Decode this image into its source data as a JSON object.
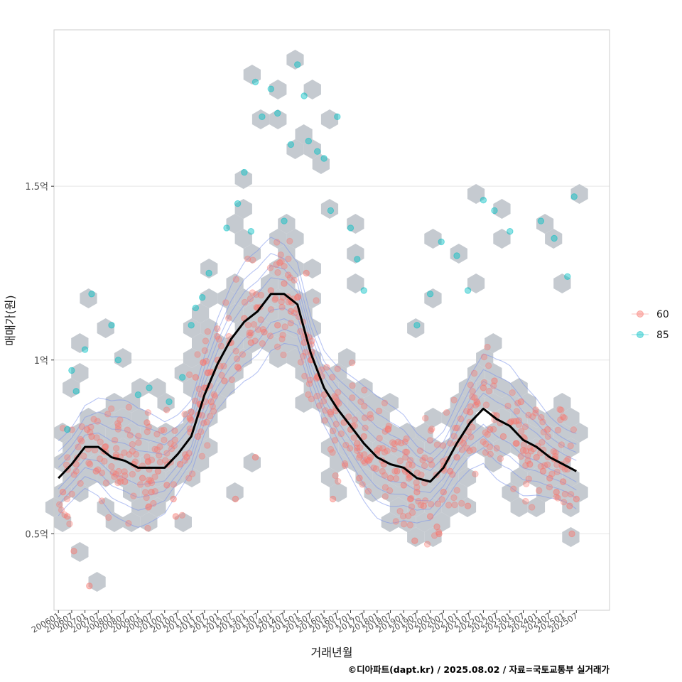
{
  "chart_data": {
    "type": "scatter",
    "title": "",
    "xlabel": "거래년월",
    "ylabel": "매매가(원)",
    "caption": "©디아파트(dapt.kr) / 2025.08.02 / 자료=국토교통부 실거래가",
    "x_tick_labels": [
      "200601",
      "200607",
      "200701",
      "200707",
      "200801",
      "200807",
      "200901",
      "200907",
      "201001",
      "201007",
      "201101",
      "201107",
      "201201",
      "201207",
      "201301",
      "201307",
      "201401",
      "201407",
      "201501",
      "201507",
      "201601",
      "201607",
      "201701",
      "201707",
      "201801",
      "201807",
      "201901",
      "201907",
      "202001",
      "202007",
      "202101",
      "202107",
      "202201",
      "202207",
      "202301",
      "202307",
      "202401",
      "202407",
      "202501",
      "202507"
    ],
    "y_ticks": [
      {
        "value": 0.5,
        "label": "0.5억"
      },
      {
        "value": 1.0,
        "label": "1억"
      },
      {
        "value": 1.5,
        "label": "1.5억"
      }
    ],
    "y_unit": "억원",
    "ylim": [
      0.28,
      1.95
    ],
    "xlim": [
      "2005-11",
      "2026-10"
    ],
    "grid": true,
    "legend_position": "right",
    "legend": [
      {
        "name": "60",
        "color": "#F8766D"
      },
      {
        "name": "85",
        "color": "#00BFC4"
      }
    ],
    "trend_line": {
      "color": "#000000",
      "x": [
        "2006-01",
        "2006-07",
        "2007-01",
        "2007-07",
        "2008-01",
        "2008-07",
        "2009-01",
        "2009-07",
        "2010-01",
        "2010-07",
        "2011-01",
        "2011-07",
        "2012-01",
        "2012-07",
        "2013-01",
        "2013-07",
        "2014-01",
        "2014-07",
        "2015-01",
        "2015-07",
        "2016-01",
        "2016-07",
        "2017-01",
        "2017-07",
        "2018-01",
        "2018-07",
        "2019-01",
        "2019-07",
        "2020-01",
        "2020-07",
        "2021-01",
        "2021-07",
        "2022-01",
        "2022-07",
        "2023-01",
        "2023-07",
        "2024-01",
        "2024-07",
        "2025-01",
        "2025-07"
      ],
      "values": [
        0.66,
        0.7,
        0.75,
        0.75,
        0.72,
        0.71,
        0.69,
        0.69,
        0.69,
        0.73,
        0.78,
        0.9,
        0.99,
        1.06,
        1.11,
        1.14,
        1.19,
        1.19,
        1.16,
        1.02,
        0.92,
        0.86,
        0.81,
        0.76,
        0.72,
        0.7,
        0.69,
        0.66,
        0.65,
        0.69,
        0.76,
        0.82,
        0.86,
        0.83,
        0.81,
        0.77,
        0.75,
        0.72,
        0.7,
        0.68
      ]
    },
    "series": [
      {
        "name": "60",
        "color": "#F8766D",
        "x": [
          "2006-03",
          "2006-05",
          "2006-09",
          "2007-02",
          "2007-06",
          "2007-10",
          "2008-03",
          "2008-07",
          "2008-11",
          "2009-03",
          "2009-07",
          "2009-10",
          "2010-02",
          "2010-05",
          "2010-08",
          "2010-11",
          "2011-01",
          "2011-04",
          "2011-07",
          "2011-10",
          "2012-01",
          "2012-04",
          "2012-07",
          "2012-10",
          "2013-01",
          "2013-04",
          "2013-07",
          "2013-10",
          "2014-01",
          "2014-04",
          "2014-07",
          "2014-10",
          "2015-01",
          "2015-04",
          "2015-07",
          "2015-10",
          "2016-01",
          "2016-04",
          "2016-07",
          "2016-10",
          "2017-01",
          "2017-04",
          "2017-07",
          "2017-10",
          "2018-01",
          "2018-04",
          "2018-07",
          "2018-10",
          "2019-01",
          "2019-04",
          "2019-07",
          "2019-10",
          "2020-01",
          "2020-04",
          "2020-07",
          "2020-10",
          "2021-01",
          "2021-04",
          "2021-07",
          "2021-10",
          "2022-01",
          "2022-04",
          "2022-07",
          "2022-10",
          "2023-01",
          "2023-04",
          "2023-07",
          "2023-10",
          "2024-01",
          "2024-04",
          "2024-07",
          "2024-10",
          "2025-01",
          "2025-04",
          "2025-07",
          "2006-08",
          "2007-03",
          "2007-04",
          "2009-05",
          "2010-06",
          "2011-03",
          "2012-09",
          "2013-06",
          "2014-05",
          "2015-05",
          "2016-05",
          "2017-05",
          "2018-06",
          "2019-06",
          "2020-05",
          "2021-06",
          "2022-06",
          "2023-06",
          "2024-06",
          "2025-05"
        ],
        "values": [
          0.62,
          0.55,
          0.7,
          0.8,
          0.68,
          0.75,
          0.72,
          0.65,
          0.7,
          0.66,
          0.62,
          0.68,
          0.64,
          0.6,
          0.7,
          0.72,
          0.85,
          0.78,
          0.92,
          0.88,
          1.0,
          0.94,
          1.05,
          0.98,
          1.12,
          1.05,
          1.15,
          1.08,
          1.2,
          1.1,
          1.22,
          1.14,
          1.18,
          1.05,
          1.0,
          0.95,
          0.9,
          0.85,
          0.88,
          0.82,
          0.8,
          0.76,
          0.78,
          0.72,
          0.74,
          0.7,
          0.66,
          0.68,
          0.64,
          0.6,
          0.62,
          0.58,
          0.55,
          0.52,
          0.62,
          0.68,
          0.72,
          0.76,
          0.85,
          0.88,
          0.92,
          0.8,
          0.84,
          0.78,
          0.82,
          0.76,
          0.74,
          0.7,
          0.72,
          0.68,
          0.66,
          0.62,
          0.65,
          0.58,
          0.6,
          0.45,
          0.35,
          0.78,
          0.82,
          0.55,
          0.95,
          0.6,
          0.72,
          1.28,
          1.25,
          0.6,
          0.66,
          0.8,
          0.48,
          0.5,
          0.58,
          0.94,
          0.88,
          0.8,
          0.5
        ]
      },
      {
        "name": "85",
        "color": "#00BFC4",
        "x": [
          "2006-05",
          "2006-07",
          "2006-09",
          "2007-01",
          "2007-04",
          "2008-01",
          "2008-04",
          "2009-01",
          "2009-06",
          "2010-03",
          "2010-09",
          "2011-01",
          "2011-03",
          "2011-06",
          "2011-09",
          "2012-05",
          "2012-10",
          "2013-01",
          "2013-04",
          "2013-06",
          "2013-09",
          "2014-01",
          "2014-04",
          "2014-07",
          "2014-10",
          "2015-01",
          "2015-04",
          "2015-06",
          "2015-10",
          "2016-01",
          "2016-04",
          "2016-07",
          "2017-01",
          "2017-04",
          "2017-07",
          "2019-07",
          "2020-01",
          "2020-06",
          "2021-01",
          "2021-06",
          "2022-01",
          "2022-06",
          "2023-01",
          "2024-03",
          "2024-09",
          "2025-03",
          "2025-06"
        ],
        "values": [
          0.8,
          0.97,
          0.91,
          1.03,
          1.19,
          1.1,
          1.0,
          0.9,
          0.92,
          0.88,
          0.95,
          1.1,
          1.15,
          1.18,
          1.25,
          1.38,
          1.45,
          1.54,
          1.37,
          1.8,
          1.7,
          1.78,
          1.71,
          1.4,
          1.62,
          1.85,
          1.76,
          1.63,
          1.6,
          1.58,
          1.43,
          1.7,
          1.38,
          1.29,
          1.2,
          1.1,
          1.19,
          1.34,
          1.3,
          1.2,
          1.46,
          1.43,
          1.37,
          1.4,
          1.35,
          1.24,
          1.47
        ]
      }
    ]
  }
}
